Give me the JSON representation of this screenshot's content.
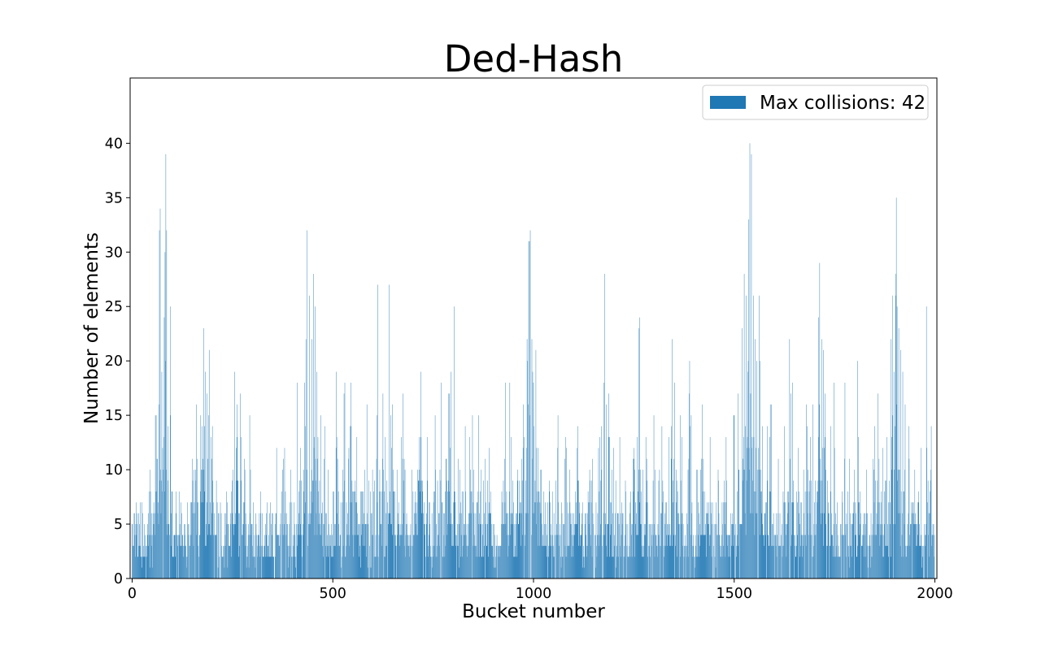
{
  "chart_data": {
    "type": "bar",
    "title": "Ded-Hash",
    "xlabel": "Bucket number",
    "ylabel": "Number of elements",
    "xlim": [
      -5,
      2005
    ],
    "ylim": [
      0,
      46
    ],
    "xticks": [
      0,
      500,
      1000,
      1500,
      2000
    ],
    "yticks": [
      0,
      5,
      10,
      15,
      20,
      25,
      30,
      35,
      40
    ],
    "grid": false,
    "legend_position": "upper right",
    "bar_color": "#1f77b4",
    "series": [
      {
        "name": "Max collisions: 42",
        "n_buckets": 2000,
        "values_description": "per-bucket element counts, bucket 0..1999",
        "peaks": [
          [
            5,
            6
          ],
          [
            10,
            7
          ],
          [
            30,
            5
          ],
          [
            45,
            10
          ],
          [
            52,
            6
          ],
          [
            58,
            15
          ],
          [
            62,
            11
          ],
          [
            68,
            32
          ],
          [
            70,
            34
          ],
          [
            74,
            19
          ],
          [
            80,
            24
          ],
          [
            82,
            30
          ],
          [
            84,
            39
          ],
          [
            86,
            32
          ],
          [
            90,
            14
          ],
          [
            96,
            15
          ],
          [
            100,
            8
          ],
          [
            110,
            8
          ],
          [
            130,
            5
          ],
          [
            150,
            11
          ],
          [
            160,
            16
          ],
          [
            175,
            14
          ],
          [
            178,
            23
          ],
          [
            182,
            19
          ],
          [
            186,
            17
          ],
          [
            192,
            21
          ],
          [
            200,
            14
          ],
          [
            210,
            9
          ],
          [
            240,
            5
          ],
          [
            255,
            19
          ],
          [
            262,
            16
          ],
          [
            270,
            17
          ],
          [
            280,
            11
          ],
          [
            290,
            5
          ],
          [
            320,
            8
          ],
          [
            345,
            7
          ],
          [
            360,
            12
          ],
          [
            375,
            10
          ],
          [
            380,
            12
          ],
          [
            395,
            10
          ],
          [
            420,
            12
          ],
          [
            430,
            18
          ],
          [
            436,
            32
          ],
          [
            442,
            26
          ],
          [
            448,
            22
          ],
          [
            452,
            28
          ],
          [
            456,
            25
          ],
          [
            460,
            19
          ],
          [
            470,
            15
          ],
          [
            480,
            14
          ],
          [
            500,
            8
          ],
          [
            510,
            13
          ],
          [
            530,
            18
          ],
          [
            540,
            12
          ],
          [
            545,
            18
          ],
          [
            560,
            13
          ],
          [
            580,
            10
          ],
          [
            590,
            9
          ],
          [
            610,
            15
          ],
          [
            625,
            17
          ],
          [
            640,
            27
          ],
          [
            648,
            16
          ],
          [
            660,
            10
          ],
          [
            675,
            17
          ],
          [
            700,
            8
          ],
          [
            715,
            13
          ],
          [
            720,
            19
          ],
          [
            735,
            13
          ],
          [
            755,
            15
          ],
          [
            770,
            18
          ],
          [
            782,
            11
          ],
          [
            795,
            19
          ],
          [
            802,
            25
          ],
          [
            812,
            11
          ],
          [
            830,
            14
          ],
          [
            848,
            15
          ],
          [
            870,
            10
          ],
          [
            880,
            11
          ],
          [
            890,
            12
          ],
          [
            930,
            18
          ],
          [
            945,
            13
          ],
          [
            960,
            10
          ],
          [
            975,
            16
          ],
          [
            985,
            20
          ],
          [
            988,
            31
          ],
          [
            990,
            31
          ],
          [
            992,
            32
          ],
          [
            996,
            22
          ],
          [
            1000,
            18
          ],
          [
            1006,
            21
          ],
          [
            1012,
            12
          ],
          [
            1020,
            10
          ],
          [
            1040,
            9
          ],
          [
            1060,
            12
          ],
          [
            1080,
            13
          ],
          [
            1090,
            10
          ],
          [
            1110,
            14
          ],
          [
            1140,
            10
          ],
          [
            1165,
            13
          ],
          [
            1175,
            18
          ],
          [
            1182,
            16
          ],
          [
            1188,
            17
          ],
          [
            1200,
            12
          ],
          [
            1215,
            13
          ],
          [
            1230,
            8
          ],
          [
            1250,
            12
          ],
          [
            1262,
            23
          ],
          [
            1264,
            24
          ],
          [
            1280,
            13
          ],
          [
            1300,
            15
          ],
          [
            1320,
            14
          ],
          [
            1338,
            13
          ],
          [
            1345,
            22
          ],
          [
            1352,
            18
          ],
          [
            1370,
            13
          ],
          [
            1390,
            14
          ],
          [
            1420,
            16
          ],
          [
            1440,
            13
          ],
          [
            1460,
            10
          ],
          [
            1480,
            13
          ],
          [
            1500,
            15
          ],
          [
            1510,
            17
          ],
          [
            1520,
            23
          ],
          [
            1525,
            28
          ],
          [
            1530,
            26
          ],
          [
            1536,
            33
          ],
          [
            1539,
            40
          ],
          [
            1543,
            39
          ],
          [
            1548,
            26
          ],
          [
            1552,
            22
          ],
          [
            1556,
            20
          ],
          [
            1562,
            26
          ],
          [
            1570,
            14
          ],
          [
            1582,
            14
          ],
          [
            1590,
            16
          ],
          [
            1610,
            11
          ],
          [
            1625,
            14
          ],
          [
            1638,
            22
          ],
          [
            1645,
            18
          ],
          [
            1660,
            12
          ],
          [
            1680,
            16
          ],
          [
            1690,
            13
          ],
          [
            1710,
            24
          ],
          [
            1713,
            29
          ],
          [
            1718,
            22
          ],
          [
            1722,
            21
          ],
          [
            1726,
            17
          ],
          [
            1740,
            14
          ],
          [
            1750,
            12
          ],
          [
            1775,
            11
          ],
          [
            1800,
            10
          ],
          [
            1810,
            13
          ],
          [
            1830,
            10
          ],
          [
            1850,
            14
          ],
          [
            1858,
            17
          ],
          [
            1870,
            12
          ],
          [
            1880,
            13
          ],
          [
            1890,
            22
          ],
          [
            1894,
            26
          ],
          [
            1898,
            19
          ],
          [
            1903,
            26
          ],
          [
            1906,
            25
          ],
          [
            1910,
            23
          ],
          [
            1915,
            21
          ],
          [
            1920,
            19
          ],
          [
            1935,
            14
          ],
          [
            1950,
            10
          ],
          [
            1960,
            8
          ],
          [
            1980,
            12
          ],
          [
            1990,
            10
          ],
          [
            1996,
            4
          ]
        ]
      }
    ]
  }
}
